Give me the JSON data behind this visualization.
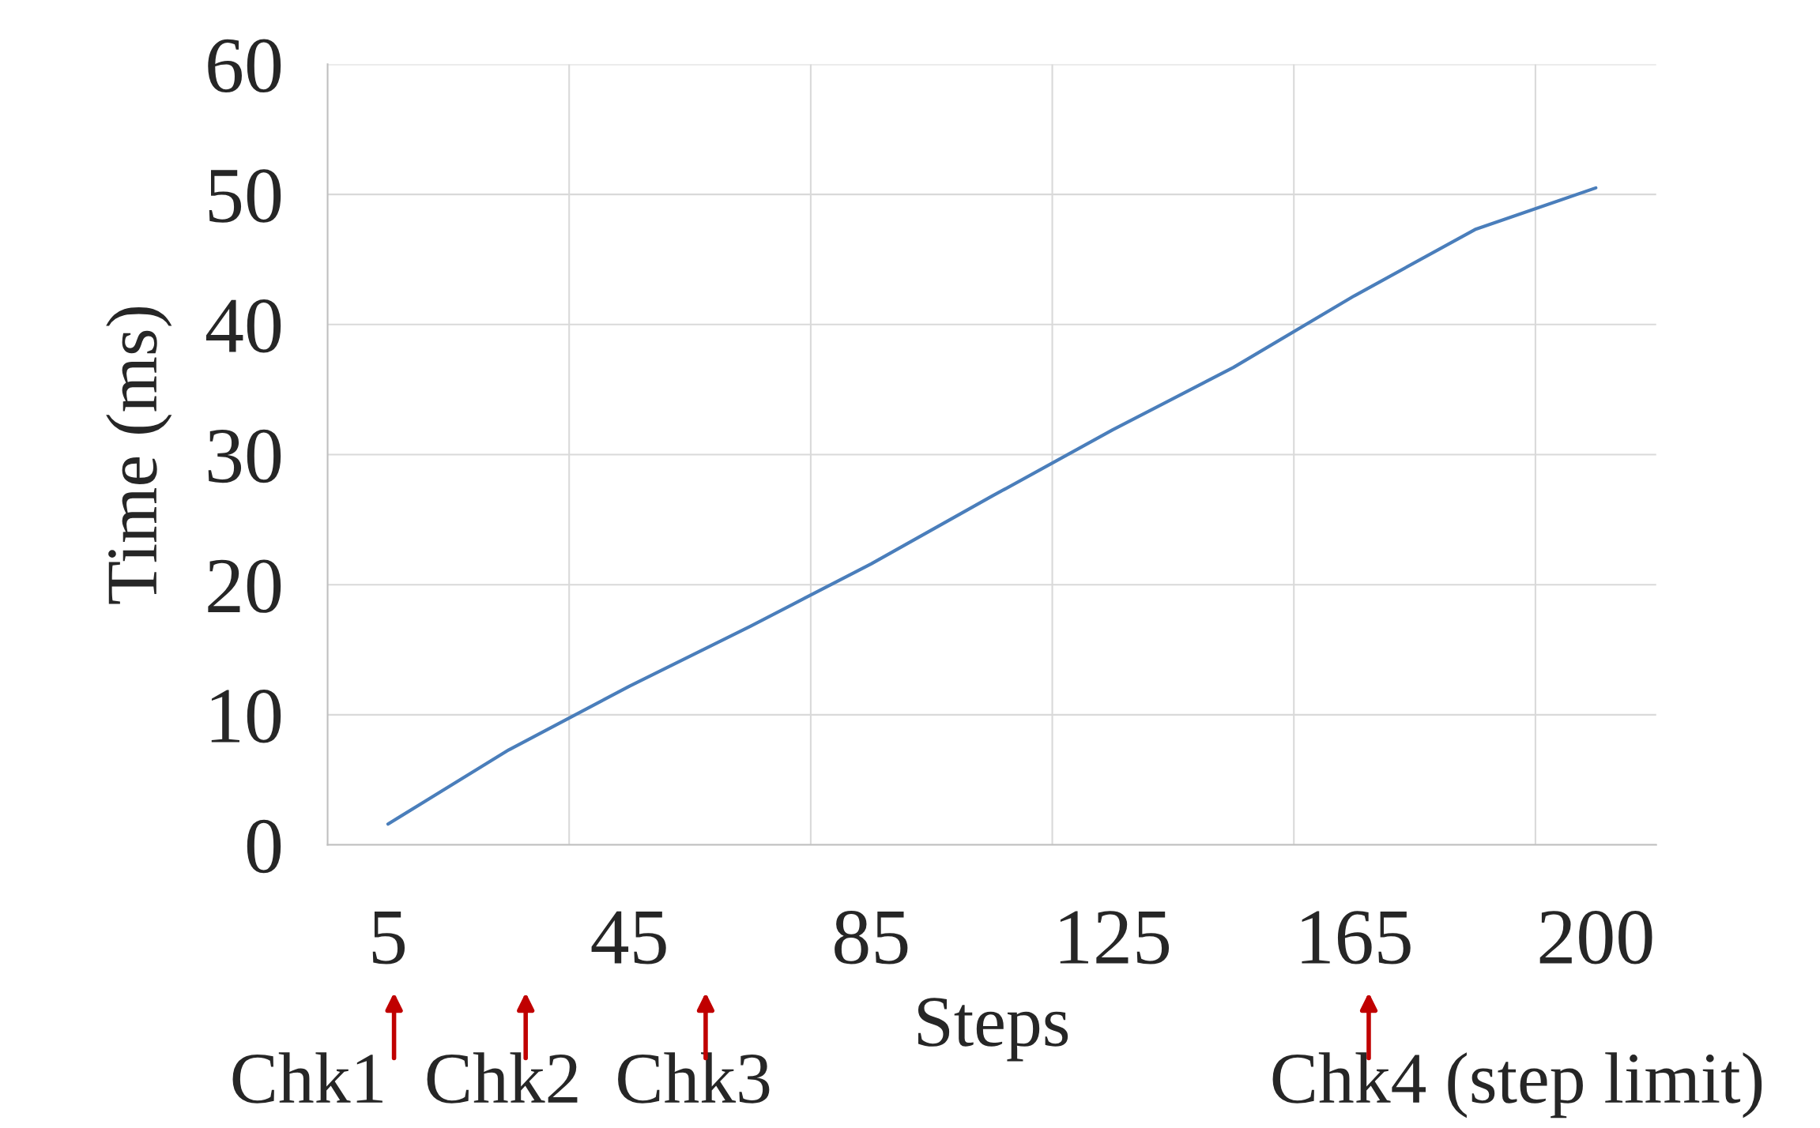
{
  "chart_data": {
    "type": "line",
    "xlabel": "Steps",
    "ylabel": "Time (ms)",
    "categories": [
      "5",
      null,
      "45",
      null,
      "85",
      null,
      "125",
      null,
      "165",
      null,
      "200"
    ],
    "series": [
      {
        "color": "#4a7ebb",
        "values": [
          1.6,
          7.3,
          12.2,
          16.8,
          21.6,
          26.8,
          31.9,
          36.7,
          42.2,
          47.3,
          50.5
        ]
      }
    ],
    "ylim": [
      0,
      60
    ],
    "yticks": [
      0,
      10,
      20,
      30,
      40,
      50,
      60
    ],
    "grid": true,
    "legend": false,
    "marker": "none",
    "line_style": "solid",
    "annotations": [
      "Chk1",
      "Chk2",
      "Chk3",
      "Chk4 (step limit)"
    ]
  }
}
